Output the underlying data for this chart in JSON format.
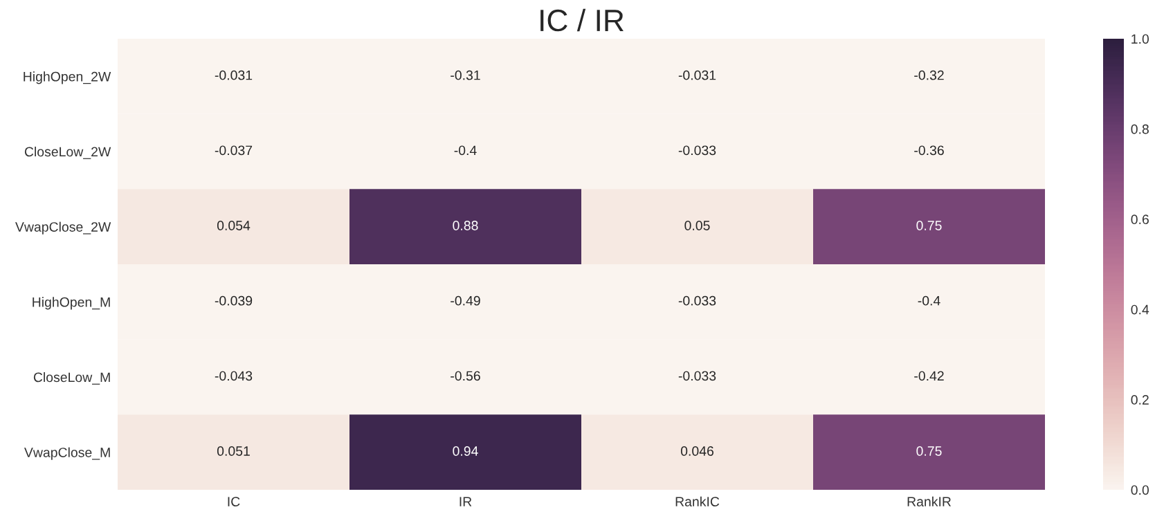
{
  "chart_data": {
    "type": "heatmap",
    "title": "IC / IR",
    "categories": [
      "IC",
      "IR",
      "RankIC",
      "RankIR"
    ],
    "y_categories": [
      "HighOpen_2W",
      "CloseLow_2W",
      "VwapClose_2W",
      "HighOpen_M",
      "CloseLow_M",
      "VwapClose_M"
    ],
    "cells": [
      [
        -0.031,
        -0.31,
        -0.031,
        -0.32
      ],
      [
        -0.037,
        -0.4,
        -0.033,
        -0.36
      ],
      [
        0.054,
        0.88,
        0.05,
        0.75
      ],
      [
        -0.039,
        -0.49,
        -0.033,
        -0.4
      ],
      [
        -0.043,
        -0.56,
        -0.033,
        -0.42
      ],
      [
        0.051,
        0.94,
        0.046,
        0.75
      ]
    ],
    "data_labels": true,
    "clim": [
      0,
      1
    ],
    "cticks": [
      {
        "value": 0,
        "label": "0.0"
      },
      0.2,
      0.4,
      0.6,
      0.8,
      {
        "value": 1,
        "label": "1.0"
      }
    ]
  }
}
